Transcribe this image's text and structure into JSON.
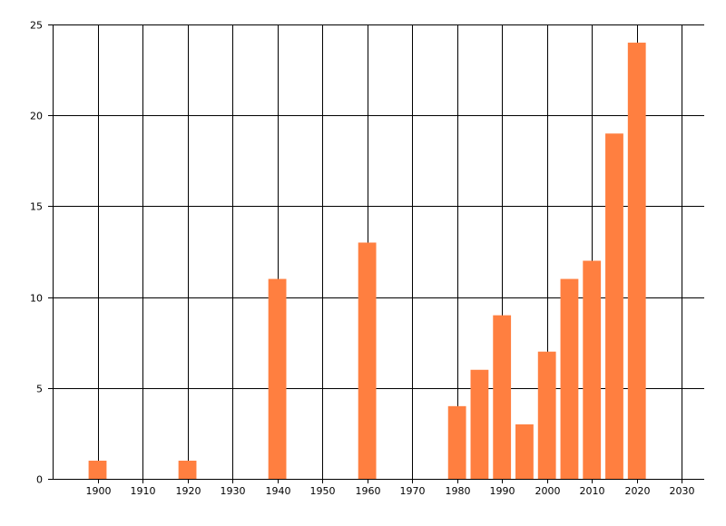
{
  "chart_data": {
    "type": "bar",
    "title": "",
    "xlabel": "",
    "ylabel": "",
    "x": [
      1900,
      1920,
      1940,
      1960,
      1980,
      1985,
      1990,
      1995,
      2000,
      2005,
      2010,
      2015,
      2020
    ],
    "values": [
      1,
      1,
      11,
      13,
      4,
      6,
      9,
      3,
      7,
      11,
      12,
      19,
      24
    ],
    "xlim": [
      1890,
      2035
    ],
    "ylim": [
      0,
      25
    ],
    "x_ticks": [
      1900,
      1910,
      1920,
      1930,
      1940,
      1950,
      1960,
      1970,
      1980,
      1990,
      2000,
      2010,
      2020,
      2030
    ],
    "y_ticks": [
      0,
      5,
      10,
      15,
      20,
      25
    ],
    "grid": true,
    "legend": "none",
    "colors": {
      "bar": "#FF7F40",
      "grid": "#000000",
      "background": "#FFFFFF"
    }
  }
}
